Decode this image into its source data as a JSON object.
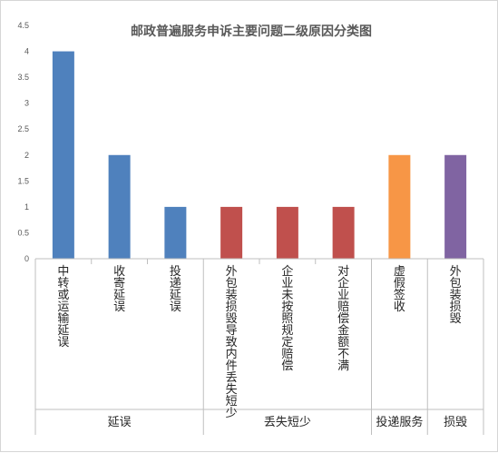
{
  "chart_data": {
    "type": "bar",
    "title": "邮政普遍服务申诉主要问题二级原因分类图",
    "xlabel": "",
    "ylabel": "",
    "ylim": [
      0,
      4.5
    ],
    "yticks": [
      "0",
      "0.5",
      "1",
      "1.5",
      "2",
      "2.5",
      "3",
      "3.5",
      "4",
      "4.5"
    ],
    "grid": false,
    "legend": "none",
    "categories": [
      "中转或运输延误",
      "收寄延误",
      "投递延误",
      "外包装损毁导致内件丢失短少",
      "企业未按照规定赔偿",
      "对企业赔偿金额不满",
      "虚假签收",
      "外包装损毁"
    ],
    "values": [
      4,
      2,
      1,
      1,
      1,
      1,
      2,
      2
    ],
    "bar_colors": [
      "#4f81bd",
      "#4f81bd",
      "#4f81bd",
      "#c0504d",
      "#c0504d",
      "#c0504d",
      "#f79646",
      "#8064a2"
    ],
    "groups": [
      {
        "label": "延误",
        "span": [
          0,
          2
        ]
      },
      {
        "label": "丢失短少",
        "span": [
          3,
          5
        ]
      },
      {
        "label": "投递服务",
        "span": [
          6,
          6
        ]
      },
      {
        "label": "损毁",
        "span": [
          7,
          7
        ]
      }
    ]
  }
}
